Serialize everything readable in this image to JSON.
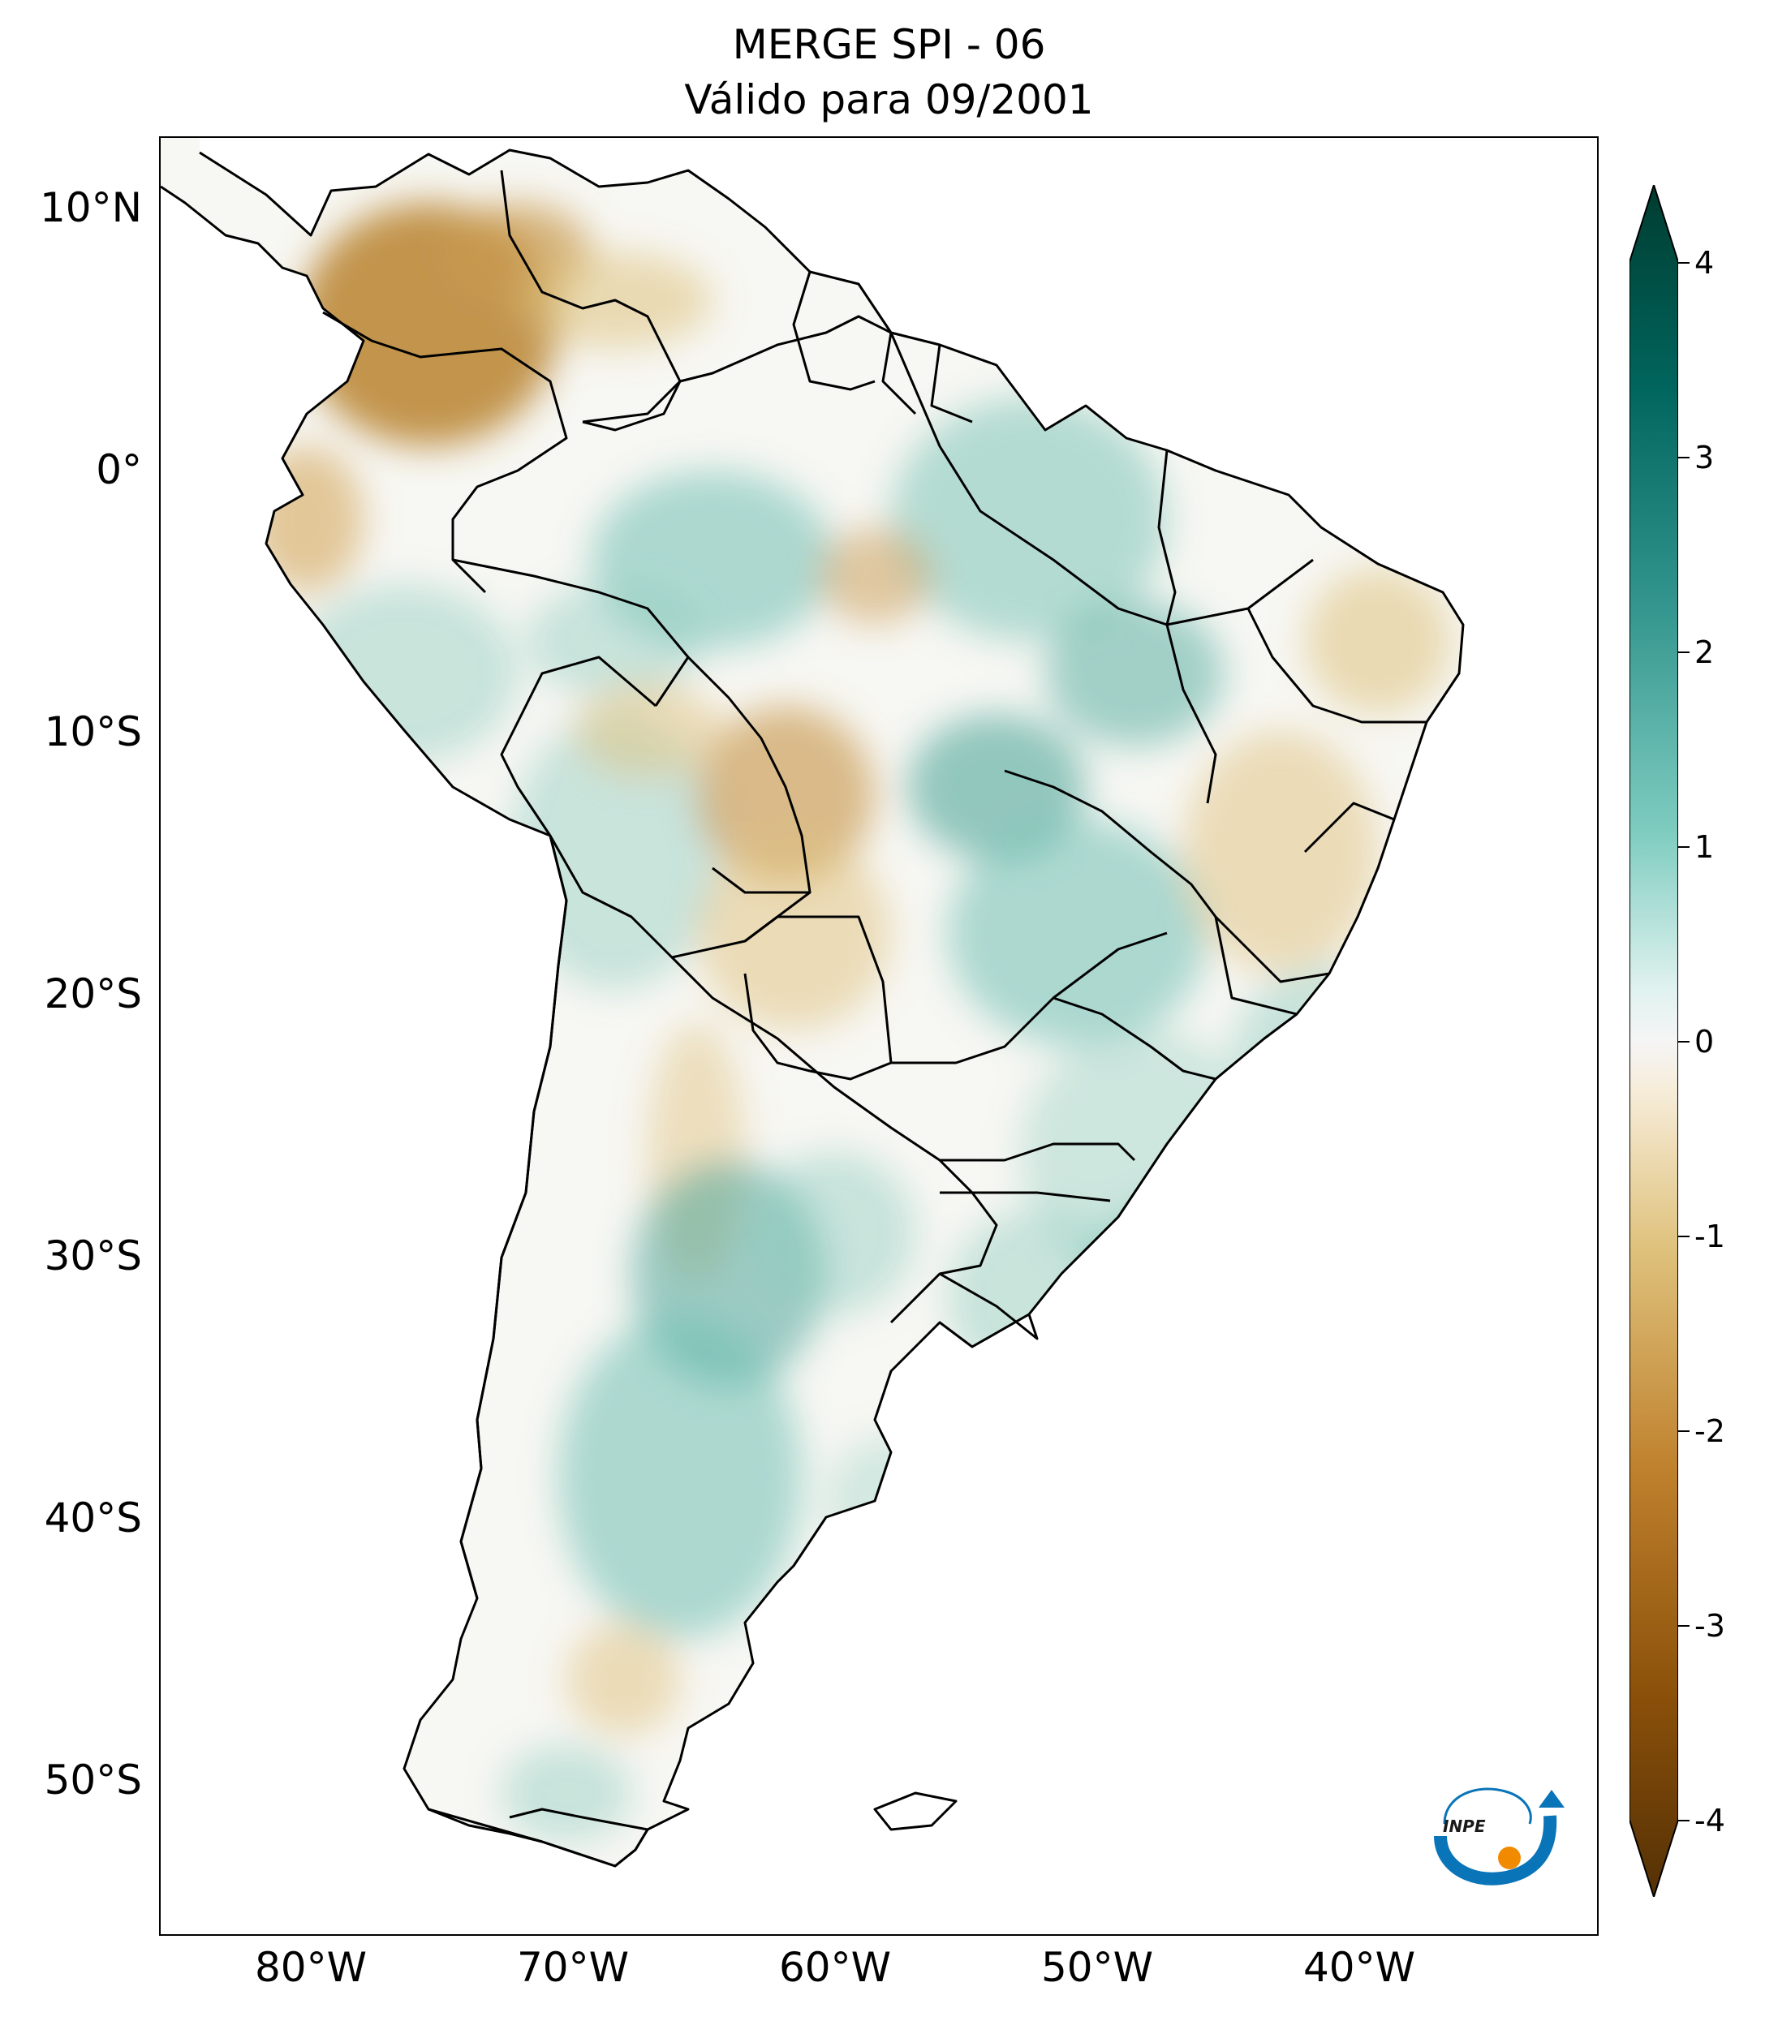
{
  "title": {
    "line1": "MERGE   SPI - 06",
    "line2": "Válido para 09/2001"
  },
  "axes": {
    "lat_labels": [
      "10°N",
      "0°",
      "10°S",
      "20°S",
      "30°S",
      "40°S",
      "50°S"
    ],
    "lon_labels": [
      "80°W",
      "70°W",
      "60°W",
      "50°W",
      "40°W"
    ]
  },
  "colorbar": {
    "ticks": [
      "4",
      "3",
      "2",
      "1",
      "0",
      "-1",
      "-2",
      "-3",
      "-4"
    ],
    "range": [
      -4,
      4
    ],
    "colors": {
      "dry_extreme": "#543005",
      "dry_strong": "#a6611a",
      "dry_mild": "#dfc27d",
      "neutral": "#f5f5f5",
      "wet_mild": "#80cdc1",
      "wet_strong": "#01665e",
      "wet_extreme": "#003c30"
    }
  },
  "logo": {
    "text": "INPE"
  }
}
